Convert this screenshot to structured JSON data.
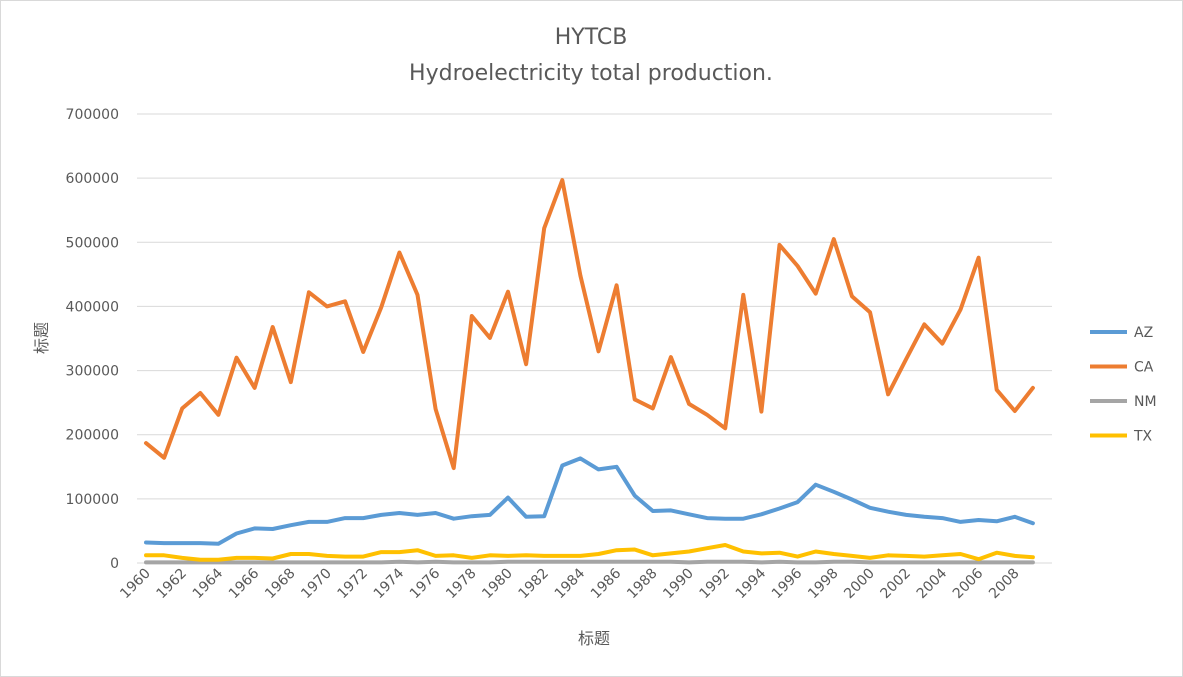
{
  "chart_data": {
    "type": "line",
    "title": "HYTCB",
    "subtitle": "Hydroelectricity total production.",
    "xlabel": "标题",
    "ylabel": "标题",
    "ylim": [
      0,
      700000
    ],
    "yticks": [
      0,
      100000,
      200000,
      300000,
      400000,
      500000,
      600000,
      700000
    ],
    "ytick_labels": [
      "0",
      "100000",
      "200000",
      "300000",
      "400000",
      "500000",
      "600000",
      "700000"
    ],
    "xtick_labels": [
      "1960",
      "1962",
      "1964",
      "1966",
      "1968",
      "1970",
      "1972",
      "1974",
      "1976",
      "1978",
      "1980",
      "1982",
      "1984",
      "1986",
      "1988",
      "1990",
      "1992",
      "1994",
      "1996",
      "1998",
      "2000",
      "2002",
      "2004",
      "2006",
      "2008"
    ],
    "grid": true,
    "legend_position": "right",
    "x": [
      1960,
      1961,
      1962,
      1963,
      1964,
      1965,
      1966,
      1967,
      1968,
      1969,
      1970,
      1971,
      1972,
      1973,
      1974,
      1975,
      1976,
      1977,
      1978,
      1979,
      1980,
      1981,
      1982,
      1983,
      1984,
      1985,
      1986,
      1987,
      1988,
      1989,
      1990,
      1991,
      1992,
      1993,
      1994,
      1995,
      1996,
      1997,
      1998,
      1999,
      2000,
      2001,
      2002,
      2003,
      2004,
      2005,
      2006,
      2007,
      2008,
      2009
    ],
    "series": [
      {
        "name": "AZ",
        "color": "#5b9bd5",
        "values": [
          32000,
          31000,
          31000,
          31000,
          30000,
          46000,
          54000,
          53000,
          59000,
          64000,
          64000,
          70000,
          70000,
          75000,
          78000,
          75000,
          78000,
          69000,
          73000,
          75000,
          102000,
          72000,
          73000,
          152000,
          163000,
          146000,
          150000,
          105000,
          81000,
          82000,
          76000,
          70000,
          69000,
          69000,
          76000,
          85000,
          95000,
          122000,
          111000,
          99000,
          86000,
          80000,
          75000,
          72000,
          70000,
          64000,
          67000,
          65000,
          72000,
          62000
        ]
      },
      {
        "name": "CA",
        "color": "#ed7d31",
        "values": [
          187000,
          164000,
          241000,
          265000,
          231000,
          320000,
          273000,
          368000,
          282000,
          422000,
          400000,
          408000,
          329000,
          399000,
          484000,
          418000,
          240000,
          148000,
          385000,
          351000,
          423000,
          310000,
          522000,
          597000,
          448000,
          330000,
          433000,
          255000,
          241000,
          321000,
          248000,
          231000,
          210000,
          418000,
          236000,
          496000,
          463000,
          420000,
          505000,
          416000,
          391000,
          263000,
          318000,
          372000,
          342000,
          395000,
          476000,
          270000,
          237000,
          273000
        ]
      },
      {
        "name": "NM",
        "color": "#a5a5a5",
        "values": [
          1000,
          1000,
          1000,
          1000,
          1000,
          1000,
          1000,
          1000,
          1000,
          1000,
          1000,
          1000,
          1000,
          1000,
          2000,
          1000,
          2000,
          1000,
          1000,
          1000,
          2000,
          2000,
          2000,
          2000,
          2000,
          2000,
          2000,
          2000,
          2000,
          2000,
          1000,
          2000,
          2000,
          2000,
          1000,
          2000,
          1000,
          1000,
          2000,
          2000,
          1000,
          1000,
          1000,
          1000,
          1000,
          1000,
          1000,
          1000,
          1000,
          1000
        ]
      },
      {
        "name": "TX",
        "color": "#ffc000",
        "values": [
          12000,
          12000,
          8000,
          5000,
          5000,
          8000,
          8000,
          7000,
          14000,
          14000,
          11000,
          10000,
          10000,
          17000,
          17000,
          20000,
          11000,
          12000,
          8000,
          12000,
          11000,
          12000,
          11000,
          11000,
          11000,
          14000,
          20000,
          21000,
          12000,
          15000,
          18000,
          23000,
          28000,
          18000,
          15000,
          16000,
          10000,
          18000,
          14000,
          11000,
          8000,
          12000,
          11000,
          10000,
          12000,
          14000,
          6000,
          16000,
          11000,
          9000
        ]
      }
    ]
  }
}
